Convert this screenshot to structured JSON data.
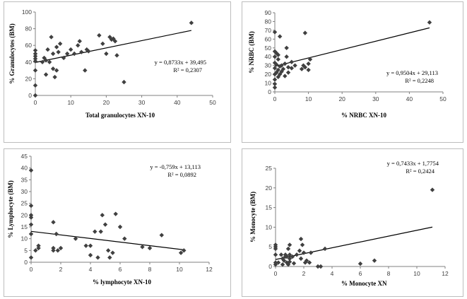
{
  "chart_data": [
    {
      "type": "scatter",
      "xlabel": "Total  granulocytes XN-10",
      "ylabel": "% Granulocytes (BM)",
      "xlim": [
        0,
        50
      ],
      "ylim": [
        0,
        100
      ],
      "xticks": [
        "0",
        "10",
        "20",
        "30",
        "40",
        "50"
      ],
      "yticks": [
        "0",
        "20",
        "40",
        "60",
        "80",
        "100"
      ],
      "equation": "y = 0,8733x + 39,495",
      "r2": "R² = 0,2307",
      "trend": {
        "slope": 0.8733,
        "intercept": 39.495,
        "x_range": [
          0,
          44
        ]
      },
      "points": [
        [
          0,
          0
        ],
        [
          0,
          12
        ],
        [
          0,
          30
        ],
        [
          0,
          41
        ],
        [
          0,
          44
        ],
        [
          0,
          47
        ],
        [
          0,
          50
        ],
        [
          0,
          54
        ],
        [
          2,
          40
        ],
        [
          2.5,
          45
        ],
        [
          3,
          42
        ],
        [
          3,
          25
        ],
        [
          3.5,
          55
        ],
        [
          4,
          40
        ],
        [
          4.5,
          70
        ],
        [
          5,
          32
        ],
        [
          5,
          50
        ],
        [
          5.5,
          22
        ],
        [
          6,
          30
        ],
        [
          6,
          58
        ],
        [
          6.5,
          52
        ],
        [
          7,
          62
        ],
        [
          8,
          45
        ],
        [
          9,
          50
        ],
        [
          10,
          55
        ],
        [
          11,
          50
        ],
        [
          12,
          60
        ],
        [
          12.5,
          65
        ],
        [
          13,
          52
        ],
        [
          14,
          30
        ],
        [
          14.5,
          55
        ],
        [
          15,
          53
        ],
        [
          18,
          72
        ],
        [
          19,
          62
        ],
        [
          20,
          50
        ],
        [
          21,
          70
        ],
        [
          21.5,
          67
        ],
        [
          22,
          68
        ],
        [
          22.5,
          65
        ],
        [
          23,
          48
        ],
        [
          25,
          16
        ],
        [
          44,
          87
        ]
      ]
    },
    {
      "type": "scatter",
      "xlabel": "% NRBC  XN-10",
      "ylabel": "% NRBC (BM)",
      "xlim": [
        0,
        50
      ],
      "ylim": [
        0,
        90
      ],
      "xticks": [
        "0",
        "10",
        "20",
        "30",
        "40",
        "50"
      ],
      "yticks": [
        "0",
        "10",
        "20",
        "30",
        "40",
        "50",
        "60",
        "70",
        "80",
        "90"
      ],
      "equation": "y = 0,9504x + 29,113",
      "r2": "R² = 0,2248",
      "trend": {
        "slope": 0.9504,
        "intercept": 29.113,
        "x_range": [
          0,
          46
        ]
      },
      "points": [
        [
          0,
          5
        ],
        [
          0,
          9
        ],
        [
          0,
          14
        ],
        [
          0,
          20
        ],
        [
          0,
          27
        ],
        [
          0,
          33
        ],
        [
          0,
          40
        ],
        [
          0,
          46
        ],
        [
          0,
          68
        ],
        [
          0.5,
          22
        ],
        [
          0.5,
          31
        ],
        [
          0.5,
          44
        ],
        [
          1,
          17
        ],
        [
          1,
          25
        ],
        [
          1,
          37
        ],
        [
          1,
          42
        ],
        [
          1.5,
          20
        ],
        [
          1.5,
          29
        ],
        [
          1.5,
          63
        ],
        [
          2,
          23
        ],
        [
          2,
          30
        ],
        [
          2.5,
          26
        ],
        [
          3,
          32
        ],
        [
          3,
          18
        ],
        [
          3.5,
          40
        ],
        [
          3.5,
          50
        ],
        [
          4,
          28
        ],
        [
          4,
          22
        ],
        [
          5,
          27
        ],
        [
          5,
          34
        ],
        [
          6,
          30
        ],
        [
          8,
          26
        ],
        [
          8.5,
          30
        ],
        [
          9,
          67
        ],
        [
          9,
          28
        ],
        [
          10,
          32
        ],
        [
          10,
          25
        ],
        [
          10.5,
          37
        ],
        [
          46,
          79
        ]
      ]
    },
    {
      "type": "scatter",
      "xlabel": "% lymphocyte XN-10",
      "ylabel": "% Lymphocyte (BM)",
      "xlim": [
        0,
        12
      ],
      "ylim": [
        0,
        45
      ],
      "xticks": [
        "0",
        "2",
        "4",
        "6",
        "8",
        "10",
        "12"
      ],
      "yticks": [
        "0",
        "5",
        "10",
        "15",
        "20",
        "25",
        "30",
        "35",
        "40",
        "45"
      ],
      "equation": "y = -0,759x + 13,113",
      "r2": "R² = 0,0892",
      "trend": {
        "slope": -0.759,
        "intercept": 13.113,
        "x_range": [
          0,
          10.3
        ]
      },
      "points": [
        [
          0,
          39
        ],
        [
          0,
          24
        ],
        [
          0,
          20
        ],
        [
          0,
          19
        ],
        [
          0,
          16
        ],
        [
          0,
          12
        ],
        [
          0,
          2
        ],
        [
          0.3,
          5
        ],
        [
          0.5,
          6
        ],
        [
          0.5,
          7
        ],
        [
          1.5,
          17
        ],
        [
          1.5,
          6
        ],
        [
          1.5,
          5
        ],
        [
          1.7,
          12
        ],
        [
          1.8,
          5
        ],
        [
          2,
          6
        ],
        [
          3,
          10
        ],
        [
          3.7,
          7
        ],
        [
          4,
          7
        ],
        [
          4,
          3
        ],
        [
          4.3,
          13
        ],
        [
          4.5,
          2
        ],
        [
          4.7,
          13
        ],
        [
          4.8,
          20
        ],
        [
          5,
          16
        ],
        [
          5.2,
          5
        ],
        [
          5.3,
          2
        ],
        [
          5.5,
          4
        ],
        [
          5.7,
          20.5
        ],
        [
          6,
          15
        ],
        [
          6.3,
          10
        ],
        [
          7.5,
          6.5
        ],
        [
          8,
          6
        ],
        [
          8.8,
          11.5
        ],
        [
          10.1,
          4
        ],
        [
          10.3,
          5
        ]
      ]
    },
    {
      "type": "scatter",
      "xlabel": "% Monocyte XN",
      "ylabel": "% Monocyte (BM)",
      "xlim": [
        0,
        12
      ],
      "ylim": [
        0,
        25
      ],
      "xticks": [
        "0",
        "2",
        "4",
        "6",
        "8",
        "10",
        "12"
      ],
      "yticks": [
        "0",
        "5",
        "10",
        "15",
        "20",
        "25"
      ],
      "equation": "y = 0,7433x + 1,7754",
      "r2": "R² = 0,2424",
      "trend": {
        "slope": 0.7433,
        "intercept": 1.7754,
        "x_range": [
          0,
          11.1
        ]
      },
      "points": [
        [
          0,
          0.5
        ],
        [
          0,
          1
        ],
        [
          0,
          3
        ],
        [
          0,
          4.5
        ],
        [
          0,
          5
        ],
        [
          0,
          5.5
        ],
        [
          0.2,
          1
        ],
        [
          0.4,
          3
        ],
        [
          0.5,
          2
        ],
        [
          0.5,
          0.5
        ],
        [
          0.6,
          1.5
        ],
        [
          0.7,
          2.5
        ],
        [
          0.7,
          3
        ],
        [
          0.8,
          1
        ],
        [
          0.8,
          2.5
        ],
        [
          0.9,
          0.5
        ],
        [
          0.9,
          4.5
        ],
        [
          1,
          2
        ],
        [
          1,
          1.2
        ],
        [
          1,
          3
        ],
        [
          1,
          5.5
        ],
        [
          1.2,
          2.5
        ],
        [
          1.3,
          0.8
        ],
        [
          1.5,
          3
        ],
        [
          1.7,
          4
        ],
        [
          1.8,
          7
        ],
        [
          1.8,
          2
        ],
        [
          1.9,
          5.5
        ],
        [
          2,
          3.5
        ],
        [
          2.1,
          1
        ],
        [
          2.2,
          1.5
        ],
        [
          2.4,
          1
        ],
        [
          2.5,
          3.5
        ],
        [
          3,
          0
        ],
        [
          3.2,
          0
        ],
        [
          3.5,
          4.5
        ],
        [
          6,
          0.7
        ],
        [
          7,
          1.5
        ],
        [
          11.1,
          19.5
        ]
      ]
    }
  ]
}
